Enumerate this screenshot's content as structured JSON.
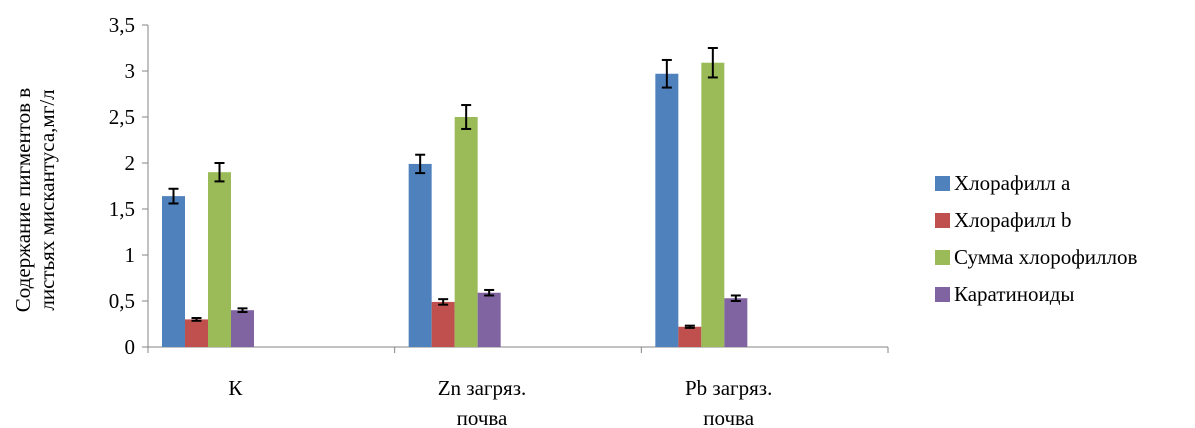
{
  "chart_data": {
    "type": "bar",
    "categories": [
      [
        "К"
      ],
      [
        "Zn загряз.",
        "почва"
      ],
      [
        "Pb загряз.",
        "почва"
      ]
    ],
    "ylabel": [
      "Содержание пигментов в",
      "листьях мискантуса,мг/л"
    ],
    "ylim": [
      0,
      3.5
    ],
    "ytick_values": [
      0,
      0.5,
      1,
      1.5,
      2,
      2.5,
      3,
      3.5
    ],
    "ytick_labels": [
      "0",
      "0,5",
      "1",
      "1,5",
      "2",
      "2,5",
      "3",
      "3,5"
    ],
    "grid": false,
    "legend_position": "right",
    "series": [
      {
        "name": "Хлорафилл а",
        "color": "#4f81bd",
        "values": [
          1.64,
          1.99,
          2.97
        ],
        "errors": [
          0.08,
          0.1,
          0.15
        ]
      },
      {
        "name": "Хлорафилл b",
        "color": "#c0504d",
        "values": [
          0.3,
          0.49,
          0.22
        ],
        "errors": [
          0.015,
          0.03,
          0.012
        ]
      },
      {
        "name": "Сумма хлорофиллов",
        "color": "#9bbb59",
        "values": [
          1.9,
          2.5,
          3.09
        ],
        "errors": [
          0.1,
          0.13,
          0.16
        ]
      },
      {
        "name": "Каратиноиды",
        "color": "#8064a2",
        "values": [
          0.4,
          0.59,
          0.53
        ],
        "errors": [
          0.02,
          0.03,
          0.03
        ]
      }
    ]
  }
}
